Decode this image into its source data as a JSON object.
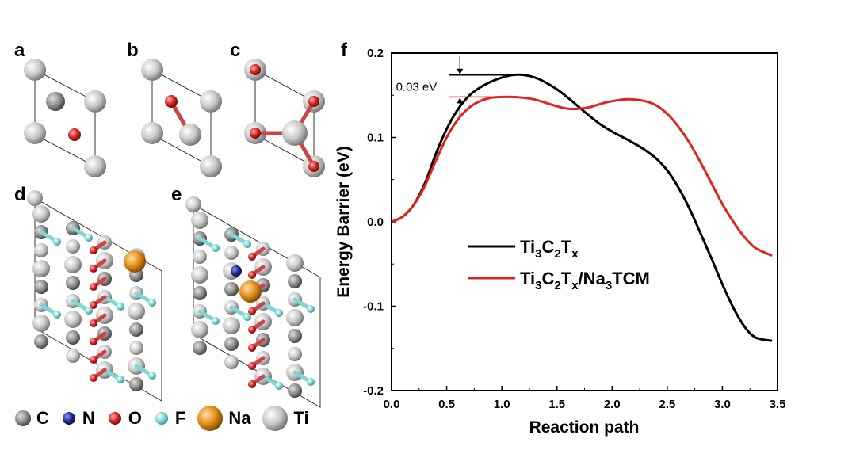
{
  "panels": {
    "a": "a",
    "b": "b",
    "c": "c",
    "d": "d",
    "e": "e",
    "f": "f"
  },
  "atom_legend": [
    {
      "symbol": "C",
      "color": "#8e8e8e"
    },
    {
      "symbol": "N",
      "color": "#1f2a8c"
    },
    {
      "symbol": "O",
      "color": "#d12020"
    },
    {
      "symbol": "F",
      "color": "#7fd6d6"
    },
    {
      "symbol": "Na",
      "color": "#e08c1a"
    },
    {
      "symbol": "Ti",
      "color": "#c8c8c8"
    }
  ],
  "chart_data": {
    "type": "line",
    "title": "",
    "xlabel": "Reaction path",
    "ylabel": "Energy Barrier (eV)",
    "xlim": [
      0.0,
      3.5
    ],
    "ylim": [
      -0.2,
      0.2
    ],
    "xticks": [
      "0.0",
      "0.5",
      "1.0",
      "1.5",
      "2.0",
      "2.5",
      "3.0",
      "3.5"
    ],
    "yticks": [
      "-0.2",
      "-0.1",
      "0.0",
      "0.1",
      "0.2"
    ],
    "annotation": "0.03 eV",
    "legend": [
      "Ti3C2Tx",
      "Ti3C2Tx/Na3TCM"
    ],
    "series": [
      {
        "name": "Ti3C2Tx",
        "color": "#000000",
        "x": [
          0.0,
          0.1,
          0.2,
          0.3,
          0.4,
          0.5,
          0.6,
          0.7,
          0.8,
          0.9,
          1.0,
          1.1,
          1.2,
          1.3,
          1.4,
          1.5,
          1.6,
          1.7,
          1.8,
          1.9,
          2.0,
          2.1,
          2.2,
          2.3,
          2.4,
          2.5,
          2.6,
          2.7,
          2.8,
          2.9,
          3.0,
          3.1,
          3.2,
          3.3,
          3.45
        ],
        "y": [
          0.0,
          0.006,
          0.02,
          0.045,
          0.08,
          0.11,
          0.133,
          0.149,
          0.159,
          0.166,
          0.171,
          0.174,
          0.174,
          0.171,
          0.165,
          0.157,
          0.147,
          0.136,
          0.125,
          0.115,
          0.107,
          0.1,
          0.093,
          0.085,
          0.075,
          0.061,
          0.041,
          0.016,
          -0.013,
          -0.043,
          -0.074,
          -0.102,
          -0.124,
          -0.137,
          -0.141
        ]
      },
      {
        "name": "Ti3C2Tx/Na3TCM",
        "color": "#e3211f",
        "x": [
          0.0,
          0.1,
          0.2,
          0.3,
          0.4,
          0.5,
          0.6,
          0.7,
          0.8,
          0.9,
          1.0,
          1.1,
          1.2,
          1.3,
          1.4,
          1.5,
          1.6,
          1.7,
          1.8,
          1.9,
          2.0,
          2.1,
          2.2,
          2.3,
          2.4,
          2.5,
          2.6,
          2.7,
          2.8,
          2.9,
          3.0,
          3.1,
          3.2,
          3.3,
          3.45
        ],
        "y": [
          0.0,
          0.006,
          0.02,
          0.042,
          0.072,
          0.1,
          0.121,
          0.135,
          0.143,
          0.147,
          0.148,
          0.148,
          0.147,
          0.145,
          0.141,
          0.137,
          0.134,
          0.134,
          0.136,
          0.14,
          0.143,
          0.145,
          0.145,
          0.143,
          0.138,
          0.128,
          0.113,
          0.094,
          0.071,
          0.046,
          0.021,
          0.0,
          -0.018,
          -0.031,
          -0.04
        ]
      }
    ]
  }
}
